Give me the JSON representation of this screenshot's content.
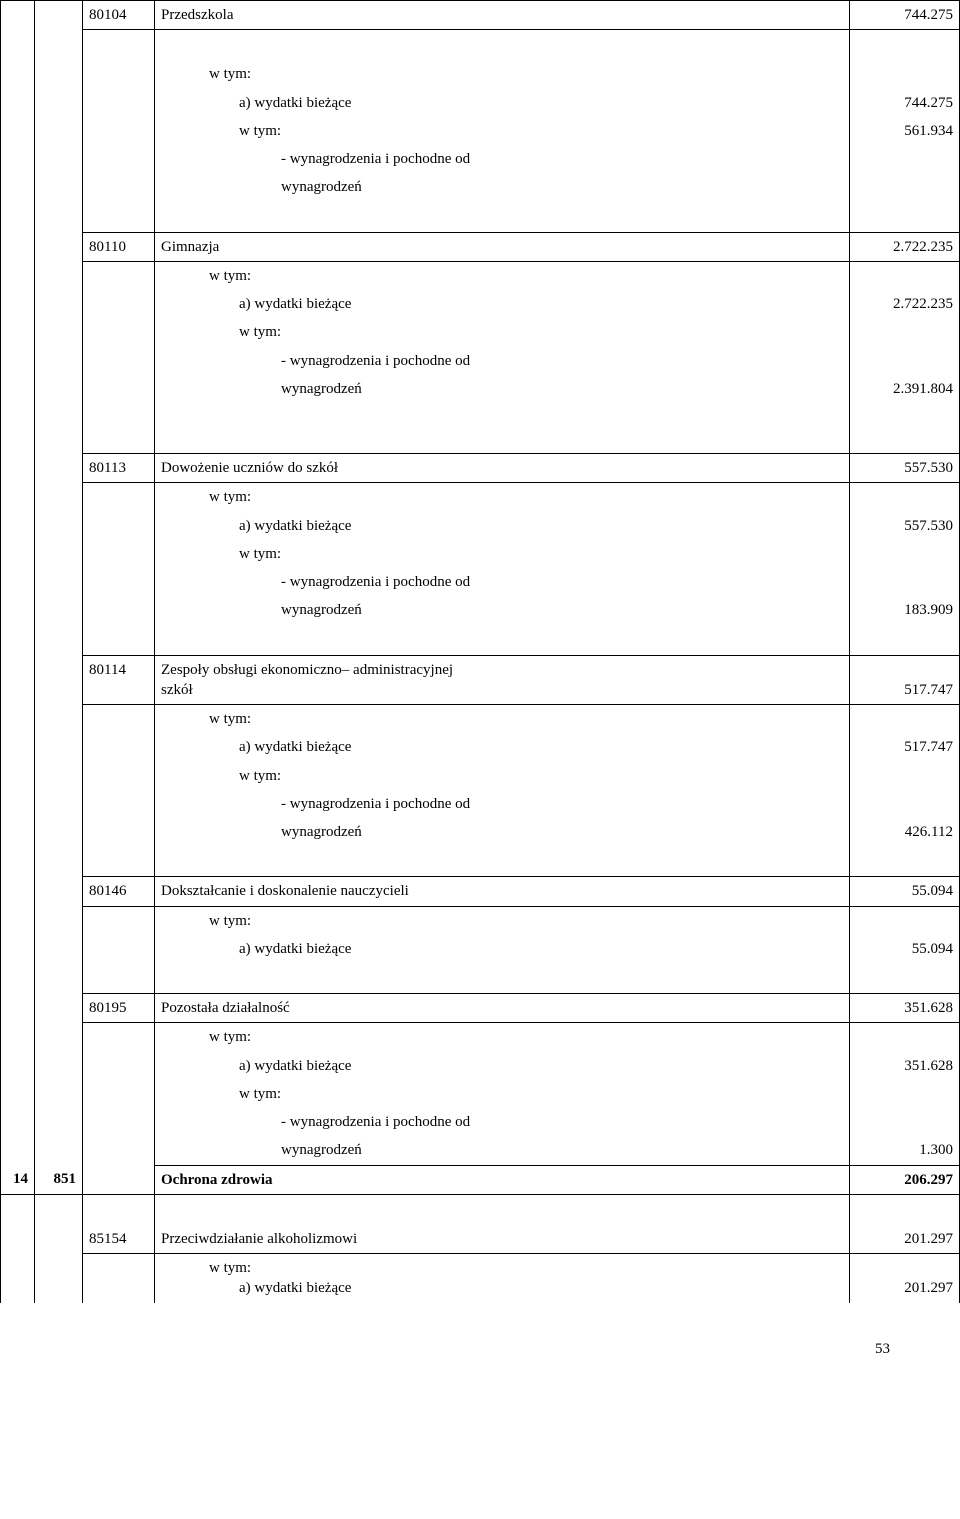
{
  "rows": [
    {
      "code": "80104",
      "title": "Przedszkola",
      "value": "744.275"
    },
    {
      "spacer": true
    },
    {
      "indent": 1,
      "label": "w tym:"
    },
    {
      "indent": 2,
      "label": "a) wydatki bieżące",
      "value": "744.275"
    },
    {
      "indent": 2,
      "label": "w tym:",
      "value": "561.934"
    },
    {
      "indent": 3,
      "label": "- wynagrodzenia i pochodne od"
    },
    {
      "indent": 3,
      "label": "wynagrodzeń"
    },
    {
      "spacer": true
    },
    {
      "code": "80110",
      "title": "Gimnazja",
      "value": "2.722.235"
    },
    {
      "indent": 1,
      "label": "w tym:"
    },
    {
      "indent": 2,
      "label": "a) wydatki bieżące",
      "value": "2.722.235"
    },
    {
      "indent": 2,
      "label": "w tym:"
    },
    {
      "indent": 3,
      "label": "- wynagrodzenia i pochodne od"
    },
    {
      "indent": 3,
      "label": "wynagrodzeń",
      "value": "2.391.804"
    },
    {
      "big_spacer": true
    },
    {
      "code": "80113",
      "title": "Dowożenie uczniów do szkół",
      "value": "557.530"
    },
    {
      "indent": 1,
      "label": "w tym:"
    },
    {
      "indent": 2,
      "label": "a) wydatki bieżące",
      "value": "557.530"
    },
    {
      "indent": 2,
      "label": "w tym:"
    },
    {
      "indent": 3,
      "label": "- wynagrodzenia i pochodne od"
    },
    {
      "indent": 3,
      "label": "wynagrodzeń",
      "value": "183.909"
    },
    {
      "spacer": true
    },
    {
      "code": "80114",
      "title_multiline": [
        "Zespoły obsługi  ekonomiczno– administracyjnej",
        "szkół"
      ],
      "value": "517.747"
    },
    {
      "indent": 1,
      "label": "w tym:"
    },
    {
      "indent": 2,
      "label": "a) wydatki bieżące",
      "value": "517.747"
    },
    {
      "indent": 2,
      "label": "w tym:"
    },
    {
      "indent": 3,
      "label": "- wynagrodzenia i pochodne od"
    },
    {
      "indent": 3,
      "label": "wynagrodzeń",
      "value": "426.112"
    },
    {
      "spacer": true
    },
    {
      "code": "80146",
      "title": "Dokształcanie i doskonalenie nauczycieli",
      "value": "55.094"
    },
    {
      "indent": 1,
      "label": "w tym:"
    },
    {
      "indent": 2,
      "label": "a) wydatki bieżące",
      "value": "55.094"
    },
    {
      "spacer": true
    },
    {
      "code": "80195",
      "title": "Pozostała działalność",
      "value": "351.628"
    },
    {
      "indent": 1,
      "label": "w tym:"
    },
    {
      "indent": 2,
      "label": "a) wydatki bieżące",
      "value": "351.628"
    },
    {
      "indent": 2,
      "label": "w tym:"
    },
    {
      "indent": 3,
      "label": "- wynagrodzenia i pochodne od"
    },
    {
      "indent": 3,
      "label": "wynagrodzeń",
      "value": "1.300"
    }
  ],
  "section": {
    "num": "14",
    "group": "851",
    "title": "Ochrona zdrowia",
    "value": "206.297"
  },
  "sub": {
    "code": "85154",
    "title": "Przeciwdziałanie alkoholizmowi",
    "value": "201.297",
    "wtym": "w tym:",
    "line": "a) wydatki bieżące",
    "line_value": "201.297"
  },
  "page_number": "53"
}
